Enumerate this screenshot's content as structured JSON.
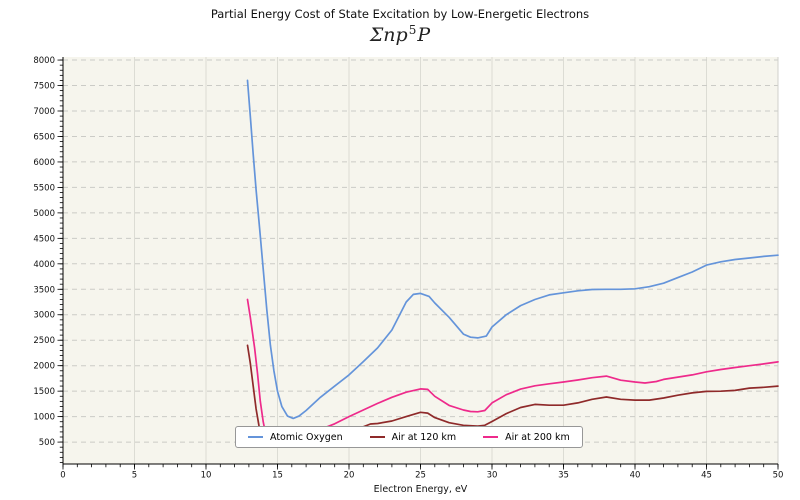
{
  "chart_data": {
    "type": "line",
    "title": "Partial Energy Cost of State Excitation by Low-Energetic Electrons",
    "subtitle": {
      "base": "Σnp",
      "sup": "5",
      "tail": "P"
    },
    "xlabel": "Electron Energy, eV",
    "ylabel": "",
    "xlim": [
      0,
      50
    ],
    "ylim": [
      70,
      8060
    ],
    "x_major_ticks": [
      0,
      5,
      10,
      15,
      20,
      25,
      30,
      35,
      40,
      45,
      50
    ],
    "x_minor_step": 1,
    "y_major_ticks": [
      500,
      1000,
      1500,
      2000,
      2500,
      3000,
      3500,
      4000,
      4500,
      5000,
      5500,
      6000,
      6500,
      7000,
      7500,
      8000
    ],
    "y_minor_step": 100,
    "grid": {
      "vertical": "solid",
      "horizontal": "dashed"
    },
    "legend_position": "inside-bottom-left",
    "plot_bg_color": "#f6f5ed",
    "vgrid_color": "#dcdcd4",
    "hgrid_color": "#cbcbc6",
    "series": [
      {
        "name": "Atomic Oxygen",
        "color": "#6494da",
        "points": [
          [
            12.9,
            7600
          ],
          [
            13.1,
            6900
          ],
          [
            13.3,
            6150
          ],
          [
            13.5,
            5450
          ],
          [
            13.75,
            4700
          ],
          [
            14.0,
            3900
          ],
          [
            14.25,
            3100
          ],
          [
            14.5,
            2400
          ],
          [
            14.75,
            1900
          ],
          [
            15.0,
            1500
          ],
          [
            15.3,
            1200
          ],
          [
            15.7,
            1010
          ],
          [
            16.1,
            965
          ],
          [
            16.5,
            1010
          ],
          [
            17,
            1120
          ],
          [
            18,
            1380
          ],
          [
            19,
            1600
          ],
          [
            20,
            1820
          ],
          [
            21,
            2080
          ],
          [
            22,
            2350
          ],
          [
            23,
            2700
          ],
          [
            24,
            3250
          ],
          [
            24.5,
            3400
          ],
          [
            25,
            3420
          ],
          [
            25.6,
            3360
          ],
          [
            26,
            3230
          ],
          [
            27,
            2950
          ],
          [
            28,
            2620
          ],
          [
            28.5,
            2560
          ],
          [
            29,
            2545
          ],
          [
            29.6,
            2580
          ],
          [
            30,
            2760
          ],
          [
            31,
            3000
          ],
          [
            32,
            3180
          ],
          [
            33,
            3300
          ],
          [
            34,
            3390
          ],
          [
            35,
            3430
          ],
          [
            36,
            3470
          ],
          [
            37,
            3495
          ],
          [
            38,
            3500
          ],
          [
            39,
            3500
          ],
          [
            40,
            3510
          ],
          [
            41,
            3550
          ],
          [
            42,
            3620
          ],
          [
            43,
            3730
          ],
          [
            44,
            3840
          ],
          [
            45,
            3975
          ],
          [
            46,
            4040
          ],
          [
            47,
            4085
          ],
          [
            48,
            4115
          ],
          [
            49,
            4145
          ],
          [
            50,
            4170
          ]
        ]
      },
      {
        "name": "Air at 120 km",
        "color": "#8f2a2a",
        "points": [
          [
            12.9,
            2400
          ],
          [
            13.1,
            2050
          ],
          [
            13.3,
            1600
          ],
          [
            13.5,
            1150
          ],
          [
            13.7,
            830
          ],
          [
            13.9,
            600
          ],
          [
            14.2,
            460
          ],
          [
            15,
            420
          ],
          [
            16,
            450
          ],
          [
            17,
            500
          ],
          [
            18,
            560
          ],
          [
            19,
            620
          ],
          [
            20,
            700
          ],
          [
            21,
            800
          ],
          [
            21.5,
            855
          ],
          [
            22,
            865
          ],
          [
            23,
            915
          ],
          [
            24,
            1000
          ],
          [
            25,
            1085
          ],
          [
            25.5,
            1070
          ],
          [
            26,
            980
          ],
          [
            27,
            880
          ],
          [
            28,
            830
          ],
          [
            29,
            815
          ],
          [
            29.5,
            830
          ],
          [
            30,
            905
          ],
          [
            31,
            1060
          ],
          [
            32,
            1180
          ],
          [
            33,
            1240
          ],
          [
            34,
            1225
          ],
          [
            35,
            1225
          ],
          [
            36,
            1270
          ],
          [
            37,
            1340
          ],
          [
            38,
            1385
          ],
          [
            39,
            1340
          ],
          [
            40,
            1325
          ],
          [
            41,
            1325
          ],
          [
            42,
            1365
          ],
          [
            43,
            1420
          ],
          [
            44,
            1465
          ],
          [
            45,
            1495
          ],
          [
            46,
            1500
          ],
          [
            47,
            1515
          ],
          [
            48,
            1560
          ],
          [
            49,
            1575
          ],
          [
            50,
            1600
          ]
        ]
      },
      {
        "name": "Air at 200 km",
        "color": "#ee2a8b",
        "points": [
          [
            12.9,
            3300
          ],
          [
            13.1,
            2950
          ],
          [
            13.4,
            2350
          ],
          [
            13.6,
            1850
          ],
          [
            13.8,
            1300
          ],
          [
            14.0,
            900
          ],
          [
            14.2,
            620
          ],
          [
            14.5,
            520
          ],
          [
            15,
            500
          ],
          [
            16,
            560
          ],
          [
            17,
            650
          ],
          [
            18,
            750
          ],
          [
            19,
            860
          ],
          [
            20,
            1000
          ],
          [
            21,
            1130
          ],
          [
            22,
            1260
          ],
          [
            23,
            1380
          ],
          [
            24,
            1480
          ],
          [
            25,
            1545
          ],
          [
            25.5,
            1535
          ],
          [
            26,
            1400
          ],
          [
            27,
            1220
          ],
          [
            28,
            1130
          ],
          [
            28.5,
            1100
          ],
          [
            29,
            1095
          ],
          [
            29.5,
            1120
          ],
          [
            30,
            1270
          ],
          [
            31,
            1430
          ],
          [
            32,
            1540
          ],
          [
            33,
            1605
          ],
          [
            34,
            1645
          ],
          [
            35,
            1680
          ],
          [
            36,
            1720
          ],
          [
            37,
            1765
          ],
          [
            38,
            1795
          ],
          [
            39,
            1715
          ],
          [
            40,
            1680
          ],
          [
            40.7,
            1660
          ],
          [
            41.5,
            1690
          ],
          [
            42,
            1730
          ],
          [
            43,
            1775
          ],
          [
            44,
            1820
          ],
          [
            45,
            1880
          ],
          [
            46,
            1925
          ],
          [
            47,
            1965
          ],
          [
            48,
            2000
          ],
          [
            49,
            2035
          ],
          [
            50,
            2075
          ]
        ]
      }
    ]
  }
}
